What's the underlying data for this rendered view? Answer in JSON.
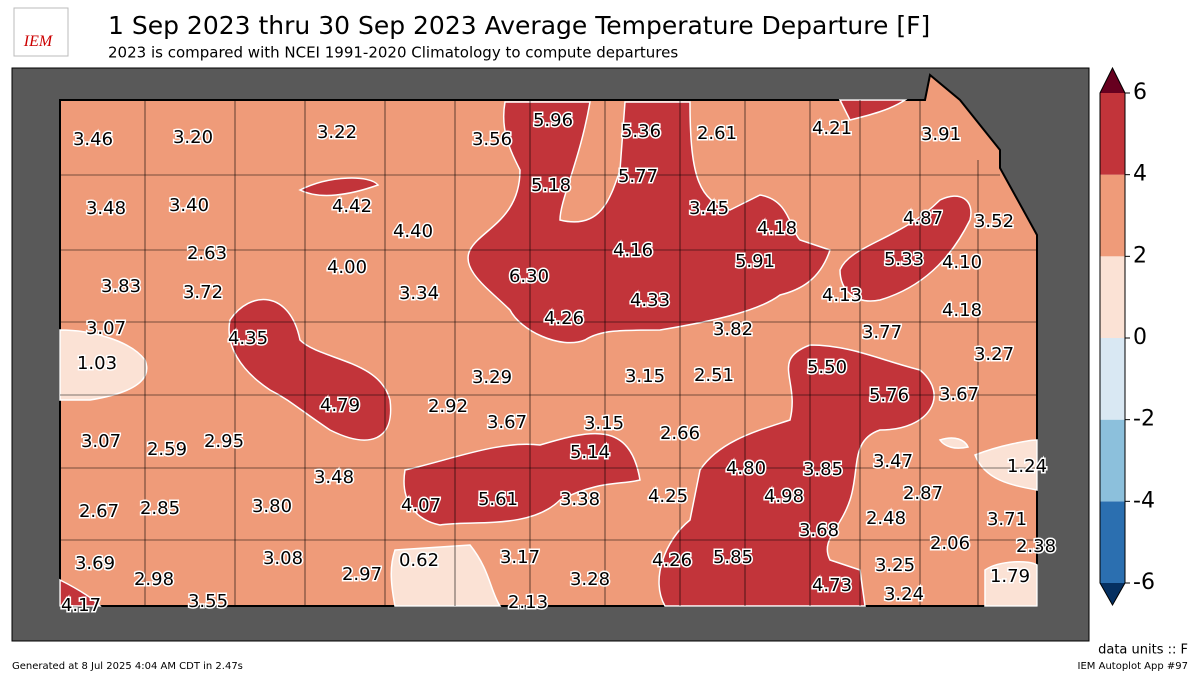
{
  "header": {
    "logo": "IEM",
    "title": "1 Sep 2023 thru 30 Sep 2023 Average Temperature Departure [F]",
    "subtitle": "2023 is compared with NCEI 1991-2020 Climatology to compute departures"
  },
  "stations": {
    "values": [
      3.46,
      3.2,
      3.22,
      3.56,
      5.96,
      5.36,
      2.61,
      4.21,
      3.91,
      3.48,
      3.4,
      4.42,
      5.18,
      5.77,
      3.45,
      4.87,
      3.52,
      4.4,
      4.18,
      2.63,
      4.16,
      6.3,
      5.91,
      5.33,
      4.1,
      3.83,
      4.0,
      3.72,
      3.34,
      4.33,
      4.13,
      3.07,
      4.26,
      4.18,
      4.35,
      3.82,
      3.77,
      1.03,
      3.27,
      3.29,
      3.15,
      2.51,
      5.5,
      4.79,
      2.92,
      5.76,
      3.67,
      3.67,
      3.15,
      2.66,
      3.07,
      2.59,
      2.95,
      5.14,
      3.47,
      4.8,
      3.85,
      1.24,
      3.48,
      4.98,
      2.87,
      4.25,
      5.61,
      3.38,
      4.07,
      2.67,
      2.85,
      3.8,
      3.68,
      2.48,
      3.71,
      2.06,
      2.38,
      3.69,
      3.08,
      0.62,
      3.17,
      4.26,
      5.85,
      3.25,
      2.98,
      2.97,
      3.28,
      4.73,
      1.79,
      4.17,
      3.55,
      2.13,
      3.24
    ],
    "value_labels": [
      "3.46",
      "3.20",
      "3.22",
      "3.56",
      "5.96",
      "5.36",
      "2.61",
      "4.21",
      "3.91",
      "3.48",
      "3.40",
      "4.42",
      "5.18",
      "5.77",
      "3.45",
      "4.87",
      "3.52",
      "4.40",
      "4.18",
      "2.63",
      "4.16",
      "6.30",
      "5.91",
      "5.33",
      "4.10",
      "3.83",
      "4.00",
      "3.72",
      "3.34",
      "4.33",
      "4.13",
      "3.07",
      "4.26",
      "4.18",
      "4.35",
      "3.82",
      "3.77",
      "1.03",
      "3.27",
      "3.29",
      "3.15",
      "2.51",
      "5.50",
      "4.79",
      "2.92",
      "5.76",
      "3.67",
      "3.67",
      "3.15",
      "2.66",
      "3.07",
      "2.59",
      "2.95",
      "5.14",
      "3.47",
      "4.80",
      "3.85",
      "1.24",
      "3.48",
      "4.98",
      "2.87",
      "4.25",
      "5.61",
      "3.38",
      "4.07",
      "2.67",
      "2.85",
      "3.80",
      "3.68",
      "2.48",
      "3.71",
      "2.06",
      "2.38",
      "3.69",
      "3.08",
      "0.62",
      "3.17",
      "4.26",
      "5.85",
      "3.25",
      "2.98",
      "2.97",
      "3.28",
      "4.73",
      "1.79",
      "4.17",
      "3.55",
      "2.13",
      "3.24"
    ]
  },
  "colorbar": {
    "ticks": [
      -6,
      -4,
      -2,
      0,
      2,
      4,
      6
    ],
    "colors": [
      "#2b6fb0",
      "#8cc0dc",
      "#d9e8f3",
      "#fbe2d5",
      "#ef9b79",
      "#c2343a"
    ],
    "under": "#053061",
    "over": "#67001f"
  },
  "footer": {
    "units": "data units :: F",
    "generated": "Generated at 8 Jul 2025 4:04 AM CDT in 2.47s",
    "app": "IEM Autoplot App #97"
  }
}
